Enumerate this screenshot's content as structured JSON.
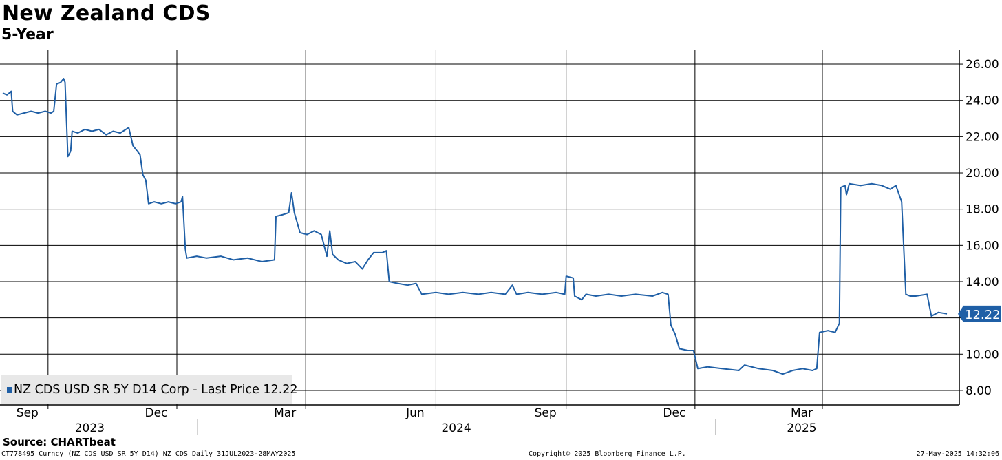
{
  "chart_data": {
    "type": "line",
    "title": "New Zealand CDS",
    "subtitle": "5-Year",
    "ylim": [
      7.2,
      26.8
    ],
    "y_ticks": [
      8.0,
      10.0,
      12.0,
      14.0,
      16.0,
      18.0,
      20.0,
      22.0,
      24.0,
      26.0
    ],
    "y_tick_labels": [
      "8.00",
      "10.00",
      "12.00",
      "14.00",
      "16.00",
      "18.00",
      "20.00",
      "22.00",
      "24.00",
      "26.00"
    ],
    "xlim": [
      "2023-07-31",
      "2025-05-28"
    ],
    "month_ticks": [
      {
        "label": "Sep",
        "date": "2023-09-01"
      },
      {
        "label": "Dec",
        "date": "2023-12-01"
      },
      {
        "label": "Mar",
        "date": "2024-03-01"
      },
      {
        "label": "Jun",
        "date": "2024-06-01"
      },
      {
        "label": "Sep",
        "date": "2024-09-01"
      },
      {
        "label": "Dec",
        "date": "2024-12-01"
      },
      {
        "label": "Mar",
        "date": "2025-03-01"
      }
    ],
    "year_labels": [
      {
        "label": "2023",
        "date": "2023-10-15"
      },
      {
        "label": "2024",
        "date": "2024-06-30"
      },
      {
        "label": "2025",
        "date": "2025-03-01"
      }
    ],
    "year_dividers": [
      "2023-12-01",
      "2024-12-01"
    ],
    "grid": true,
    "last_value_label": "12.22",
    "series": [
      {
        "name": "NZ CDS USD SR 5Y D14 Corp - Last Price 12.22",
        "color": "#1f5fa6",
        "points": [
          [
            "2023-07-31",
            24.4
          ],
          [
            "2023-08-03",
            24.3
          ],
          [
            "2023-08-06",
            24.5
          ],
          [
            "2023-08-07",
            23.4
          ],
          [
            "2023-08-10",
            23.2
          ],
          [
            "2023-08-15",
            23.3
          ],
          [
            "2023-08-20",
            23.4
          ],
          [
            "2023-08-25",
            23.3
          ],
          [
            "2023-08-30",
            23.4
          ],
          [
            "2023-09-03",
            23.3
          ],
          [
            "2023-09-05",
            23.4
          ],
          [
            "2023-09-07",
            24.9
          ],
          [
            "2023-09-10",
            25.0
          ],
          [
            "2023-09-12",
            25.2
          ],
          [
            "2023-09-13",
            25.0
          ],
          [
            "2023-09-15",
            20.9
          ],
          [
            "2023-09-17",
            21.2
          ],
          [
            "2023-09-18",
            22.3
          ],
          [
            "2023-09-22",
            22.2
          ],
          [
            "2023-09-27",
            22.4
          ],
          [
            "2023-10-02",
            22.3
          ],
          [
            "2023-10-07",
            22.4
          ],
          [
            "2023-10-12",
            22.1
          ],
          [
            "2023-10-17",
            22.3
          ],
          [
            "2023-10-22",
            22.2
          ],
          [
            "2023-10-28",
            22.5
          ],
          [
            "2023-10-31",
            21.5
          ],
          [
            "2023-11-03",
            21.2
          ],
          [
            "2023-11-05",
            21.0
          ],
          [
            "2023-11-07",
            19.9
          ],
          [
            "2023-11-09",
            19.6
          ],
          [
            "2023-11-11",
            18.3
          ],
          [
            "2023-11-15",
            18.4
          ],
          [
            "2023-11-20",
            18.3
          ],
          [
            "2023-11-25",
            18.4
          ],
          [
            "2023-11-30",
            18.3
          ],
          [
            "2023-12-04",
            18.4
          ],
          [
            "2023-12-05",
            18.7
          ],
          [
            "2023-12-07",
            15.8
          ],
          [
            "2023-12-08",
            15.3
          ],
          [
            "2023-12-15",
            15.4
          ],
          [
            "2023-12-22",
            15.3
          ],
          [
            "2024-01-01",
            15.4
          ],
          [
            "2024-01-10",
            15.2
          ],
          [
            "2024-01-20",
            15.3
          ],
          [
            "2024-01-30",
            15.1
          ],
          [
            "2024-02-08",
            15.2
          ],
          [
            "2024-02-09",
            17.6
          ],
          [
            "2024-02-14",
            17.7
          ],
          [
            "2024-02-18",
            17.8
          ],
          [
            "2024-02-20",
            18.9
          ],
          [
            "2024-02-22",
            17.8
          ],
          [
            "2024-02-26",
            16.7
          ],
          [
            "2024-03-02",
            16.6
          ],
          [
            "2024-03-07",
            16.8
          ],
          [
            "2024-03-12",
            16.6
          ],
          [
            "2024-03-16",
            15.4
          ],
          [
            "2024-03-18",
            16.8
          ],
          [
            "2024-03-20",
            15.5
          ],
          [
            "2024-03-24",
            15.2
          ],
          [
            "2024-03-30",
            15.0
          ],
          [
            "2024-04-05",
            15.1
          ],
          [
            "2024-04-10",
            14.7
          ],
          [
            "2024-04-14",
            15.2
          ],
          [
            "2024-04-18",
            15.6
          ],
          [
            "2024-04-24",
            15.6
          ],
          [
            "2024-04-27",
            15.7
          ],
          [
            "2024-04-29",
            14.0
          ],
          [
            "2024-05-05",
            13.9
          ],
          [
            "2024-05-12",
            13.8
          ],
          [
            "2024-05-18",
            13.9
          ],
          [
            "2024-05-22",
            13.3
          ],
          [
            "2024-06-01",
            13.4
          ],
          [
            "2024-06-10",
            13.3
          ],
          [
            "2024-06-20",
            13.4
          ],
          [
            "2024-07-01",
            13.3
          ],
          [
            "2024-07-10",
            13.4
          ],
          [
            "2024-07-20",
            13.3
          ],
          [
            "2024-07-25",
            13.8
          ],
          [
            "2024-07-28",
            13.3
          ],
          [
            "2024-08-05",
            13.4
          ],
          [
            "2024-08-15",
            13.3
          ],
          [
            "2024-08-25",
            13.4
          ],
          [
            "2024-08-31",
            13.3
          ],
          [
            "2024-09-01",
            14.3
          ],
          [
            "2024-09-06",
            14.2
          ],
          [
            "2024-09-07",
            13.2
          ],
          [
            "2024-09-12",
            13.0
          ],
          [
            "2024-09-15",
            13.3
          ],
          [
            "2024-09-22",
            13.2
          ],
          [
            "2024-10-01",
            13.3
          ],
          [
            "2024-10-10",
            13.2
          ],
          [
            "2024-10-20",
            13.3
          ],
          [
            "2024-11-01",
            13.2
          ],
          [
            "2024-11-08",
            13.4
          ],
          [
            "2024-11-12",
            13.3
          ],
          [
            "2024-11-14",
            11.6
          ],
          [
            "2024-11-17",
            11.1
          ],
          [
            "2024-11-20",
            10.3
          ],
          [
            "2024-11-26",
            10.2
          ],
          [
            "2024-11-30",
            10.2
          ],
          [
            "2024-12-03",
            9.2
          ],
          [
            "2024-12-10",
            9.3
          ],
          [
            "2024-12-20",
            9.2
          ],
          [
            "2025-01-01",
            9.1
          ],
          [
            "2025-01-05",
            9.4
          ],
          [
            "2025-01-15",
            9.2
          ],
          [
            "2025-01-25",
            9.1
          ],
          [
            "2025-02-01",
            8.9
          ],
          [
            "2025-02-08",
            9.1
          ],
          [
            "2025-02-15",
            9.2
          ],
          [
            "2025-02-22",
            9.1
          ],
          [
            "2025-02-25",
            9.2
          ],
          [
            "2025-02-27",
            11.2
          ],
          [
            "2025-03-05",
            11.3
          ],
          [
            "2025-03-10",
            11.2
          ],
          [
            "2025-03-13",
            11.7
          ],
          [
            "2025-03-14",
            19.2
          ],
          [
            "2025-03-17",
            19.3
          ],
          [
            "2025-03-18",
            18.8
          ],
          [
            "2025-03-20",
            19.4
          ],
          [
            "2025-03-28",
            19.3
          ],
          [
            "2025-04-05",
            19.4
          ],
          [
            "2025-04-12",
            19.3
          ],
          [
            "2025-04-18",
            19.1
          ],
          [
            "2025-04-22",
            19.3
          ],
          [
            "2025-04-26",
            18.4
          ],
          [
            "2025-04-29",
            13.3
          ],
          [
            "2025-05-02",
            13.2
          ],
          [
            "2025-05-06",
            13.2
          ],
          [
            "2025-05-14",
            13.3
          ],
          [
            "2025-05-17",
            12.1
          ],
          [
            "2025-05-22",
            12.3
          ],
          [
            "2025-05-28",
            12.22
          ]
        ]
      }
    ]
  },
  "source_label": "Source: CHARTbeat",
  "footer": {
    "left": "CT778495 Curncy (NZ CDS USD SR 5Y D14) NZ CDS  Daily 31JUL2023-28MAY2025",
    "center": "Copyright© 2025 Bloomberg Finance L.P.",
    "right": "27-May-2025 14:32:06"
  }
}
